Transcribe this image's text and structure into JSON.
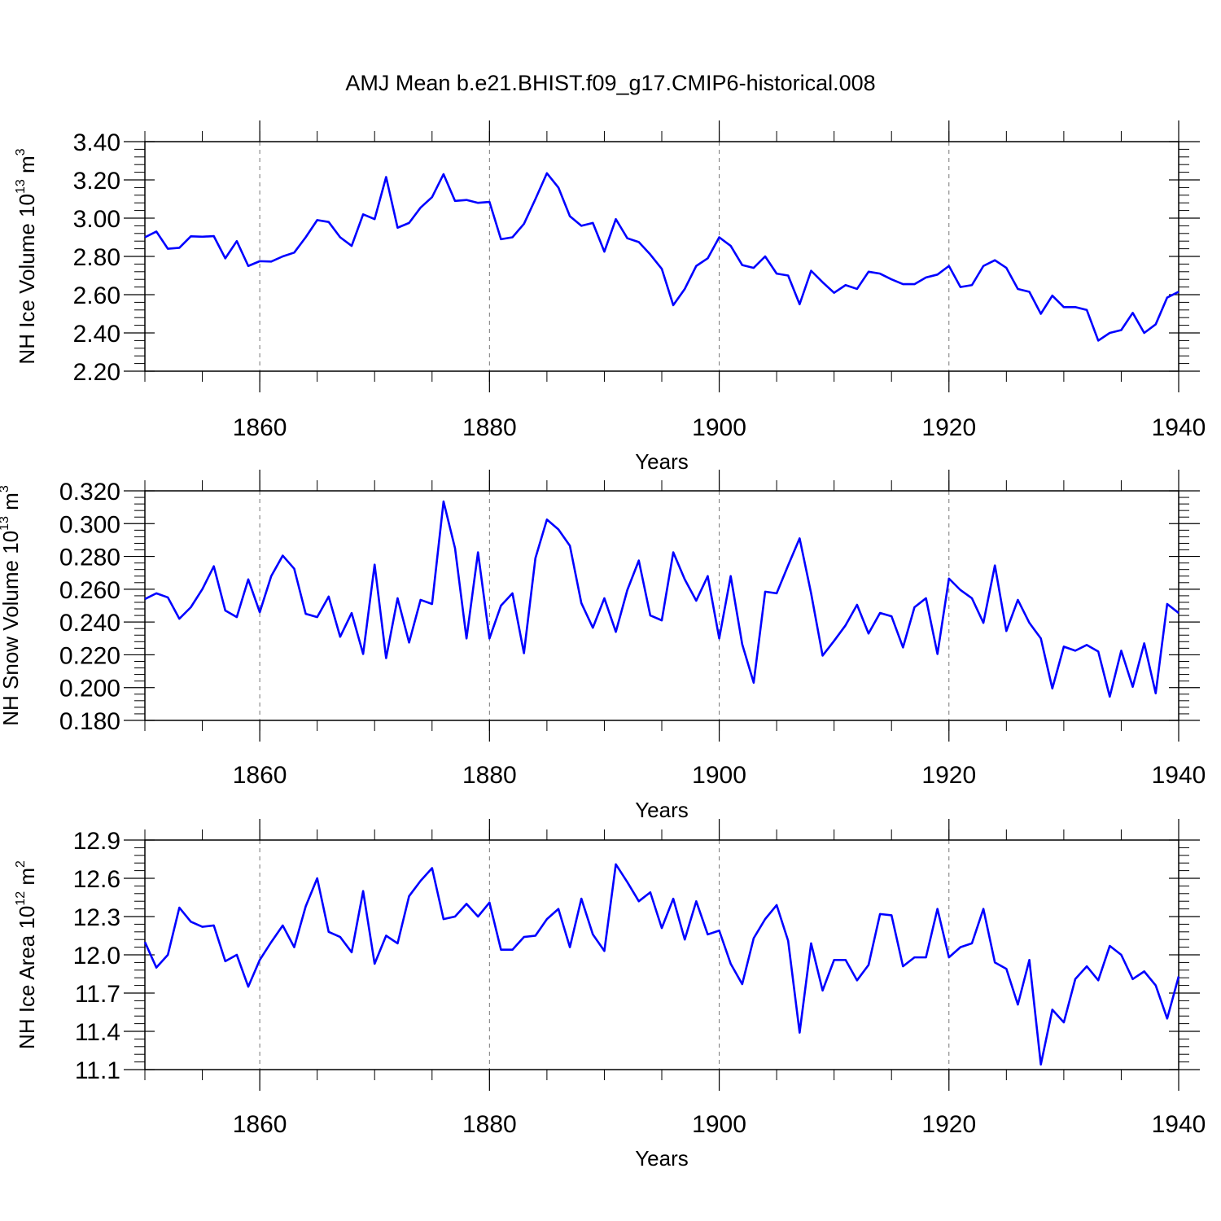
{
  "title": "AMJ Mean b.e21.BHIST.f09_g17.CMIP6-historical.008",
  "line_color": "#0000ff",
  "chart_data": [
    {
      "type": "line",
      "ylabel": {
        "base": "NH Ice Volume 10",
        "exp1": "13",
        "mid": " m",
        "exp2": "3"
      },
      "xlabel": "Years",
      "xlim": [
        1850,
        1940
      ],
      "ylim": [
        2.2,
        3.4
      ],
      "yticks": [
        "2.20",
        "2.40",
        "2.60",
        "2.80",
        "3.00",
        "3.20",
        "3.40"
      ],
      "xticks": [
        "1860",
        "1880",
        "1900",
        "1920",
        "1940"
      ],
      "grid": "vertical dashed at major x ticks",
      "x_start": 1850,
      "values": [
        2.9,
        2.93,
        2.84,
        2.845,
        2.905,
        2.903,
        2.906,
        2.79,
        2.88,
        2.75,
        2.775,
        2.773,
        2.8,
        2.82,
        2.9,
        2.99,
        2.98,
        2.9,
        2.855,
        3.02,
        2.995,
        3.215,
        2.95,
        2.975,
        3.055,
        3.11,
        3.23,
        3.09,
        3.095,
        3.08,
        3.085,
        2.89,
        2.9,
        2.97,
        3.1,
        3.235,
        3.16,
        3.01,
        2.96,
        2.975,
        2.825,
        2.995,
        2.895,
        2.875,
        2.81,
        2.735,
        2.545,
        2.63,
        2.75,
        2.79,
        2.9,
        2.855,
        2.755,
        2.74,
        2.8,
        2.71,
        2.7,
        2.55,
        2.725,
        2.665,
        2.61,
        2.65,
        2.63,
        2.72,
        2.71,
        2.68,
        2.655,
        2.655,
        2.69,
        2.705,
        2.75,
        2.64,
        2.65,
        2.75,
        2.78,
        2.74,
        2.63,
        2.615,
        2.5,
        2.595,
        2.535,
        2.535,
        2.52,
        2.36,
        2.4,
        2.415,
        2.505,
        2.4,
        2.445,
        2.585,
        2.615
      ]
    },
    {
      "type": "line",
      "ylabel": {
        "base": "NH Snow Volume 10",
        "exp1": "13",
        "mid": " m",
        "exp2": "3"
      },
      "xlabel": "Years",
      "xlim": [
        1850,
        1940
      ],
      "ylim": [
        0.18,
        0.32
      ],
      "yticks": [
        "0.180",
        "0.200",
        "0.220",
        "0.240",
        "0.260",
        "0.280",
        "0.300",
        "0.320"
      ],
      "xticks": [
        "1860",
        "1880",
        "1900",
        "1920",
        "1940"
      ],
      "grid": "vertical dashed at major x ticks",
      "x_start": 1850,
      "values": [
        0.254,
        0.2575,
        0.255,
        0.242,
        0.249,
        0.26,
        0.274,
        0.247,
        0.243,
        0.266,
        0.246,
        0.268,
        0.2805,
        0.2725,
        0.245,
        0.243,
        0.2555,
        0.231,
        0.2455,
        0.2205,
        0.275,
        0.218,
        0.2545,
        0.2275,
        0.2535,
        0.251,
        0.3135,
        0.285,
        0.23,
        0.2825,
        0.23,
        0.25,
        0.2575,
        0.221,
        0.279,
        0.3025,
        0.2965,
        0.2865,
        0.2515,
        0.2365,
        0.2545,
        0.234,
        0.2595,
        0.2775,
        0.244,
        0.241,
        0.2825,
        0.266,
        0.253,
        0.268,
        0.23,
        0.268,
        0.2265,
        0.203,
        0.2585,
        0.2575,
        0.2745,
        0.291,
        0.2575,
        0.2195,
        0.2285,
        0.238,
        0.2505,
        0.233,
        0.2455,
        0.2435,
        0.2245,
        0.249,
        0.2545,
        0.2205,
        0.2665,
        0.2595,
        0.2545,
        0.2395,
        0.2745,
        0.2345,
        0.2535,
        0.2395,
        0.23,
        0.1995,
        0.225,
        0.2225,
        0.226,
        0.222,
        0.1945,
        0.2225,
        0.2005,
        0.227,
        0.1965,
        0.251,
        0.2455
      ]
    },
    {
      "type": "line",
      "ylabel": {
        "base": "NH Ice Area 10",
        "exp1": "12",
        "mid": " m",
        "exp2": "2"
      },
      "xlabel": "Years",
      "xlim": [
        1850,
        1940
      ],
      "ylim": [
        11.1,
        12.9
      ],
      "yticks": [
        "11.1",
        "11.4",
        "11.7",
        "12.0",
        "12.3",
        "12.6",
        "12.9"
      ],
      "xticks": [
        "1860",
        "1880",
        "1900",
        "1920",
        "1940"
      ],
      "grid": "vertical dashed at major x ticks",
      "x_start": 1850,
      "values": [
        12.1,
        11.9,
        12.0,
        12.37,
        12.26,
        12.22,
        12.23,
        11.95,
        12.0,
        11.75,
        11.96,
        12.1,
        12.23,
        12.06,
        12.38,
        12.6,
        12.18,
        12.14,
        12.02,
        12.5,
        11.93,
        12.15,
        12.09,
        12.46,
        12.58,
        12.68,
        12.28,
        12.3,
        12.4,
        12.3,
        12.41,
        12.04,
        12.04,
        12.14,
        12.15,
        12.28,
        12.36,
        12.06,
        12.44,
        12.16,
        12.03,
        12.71,
        12.57,
        12.42,
        12.49,
        12.21,
        12.44,
        12.12,
        12.42,
        12.16,
        12.19,
        11.93,
        11.77,
        12.13,
        12.28,
        12.39,
        12.11,
        11.39,
        12.09,
        11.72,
        11.96,
        11.96,
        11.8,
        11.92,
        12.32,
        12.31,
        11.91,
        11.98,
        11.98,
        12.36,
        11.98,
        12.06,
        12.09,
        12.36,
        11.94,
        11.89,
        11.61,
        11.96,
        11.14,
        11.57,
        11.47,
        11.81,
        11.91,
        11.8,
        12.07,
        12.0,
        11.81,
        11.87,
        11.76,
        11.5,
        11.83
      ]
    }
  ]
}
